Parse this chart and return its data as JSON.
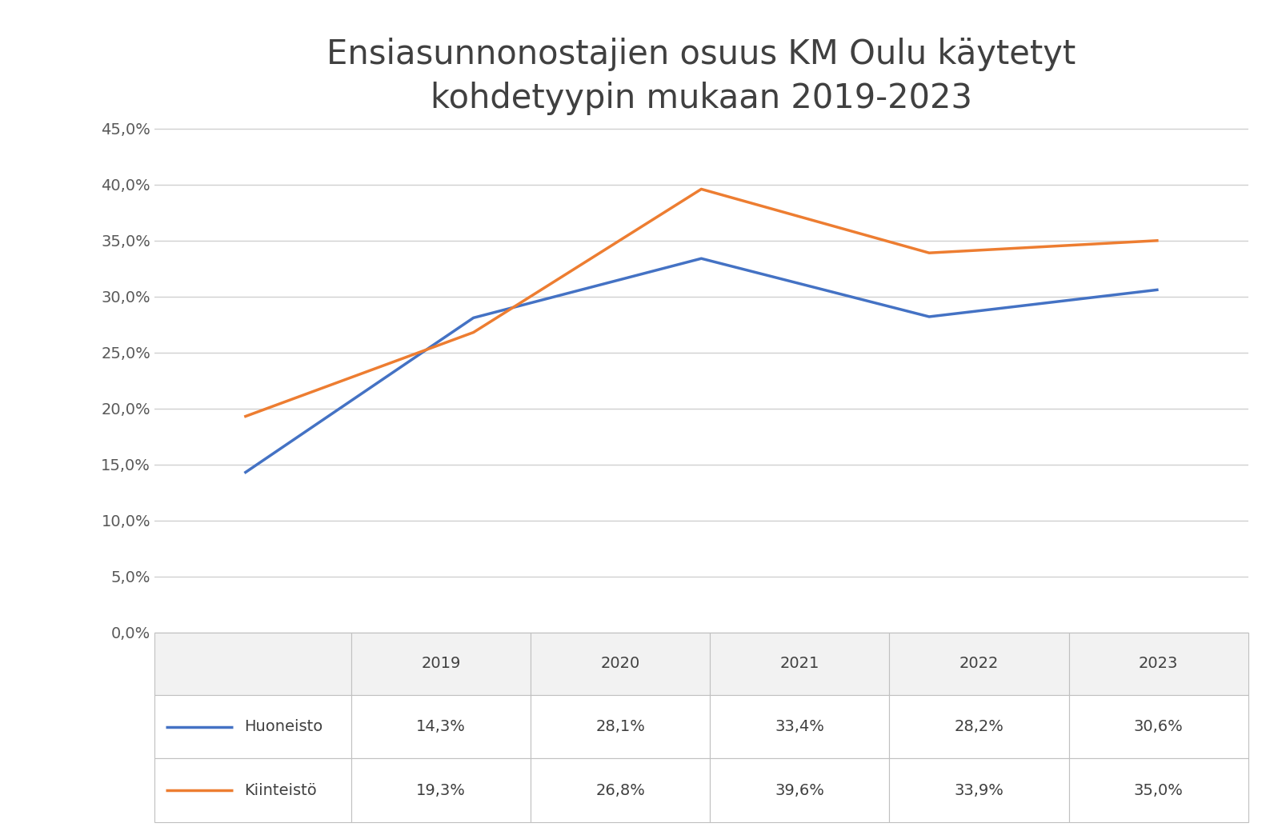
{
  "title": "Ensiasunnonostajien osuus KM Oulu käytetyt\nkohdetyypin mukaan 2019-2023",
  "years": [
    2019,
    2020,
    2021,
    2022,
    2023
  ],
  "huoneisto": [
    0.143,
    0.281,
    0.334,
    0.282,
    0.306
  ],
  "kiinteisto": [
    0.193,
    0.268,
    0.396,
    0.339,
    0.35
  ],
  "huoneisto_labels": [
    "14,3%",
    "28,1%",
    "33,4%",
    "28,2%",
    "30,6%"
  ],
  "kiinteisto_labels": [
    "19,3%",
    "26,8%",
    "39,6%",
    "33,9%",
    "35,0%"
  ],
  "color_huoneisto": "#4472C4",
  "color_kiinteisto": "#ED7D31",
  "ylim_min": 0.0,
  "ylim_max": 0.475,
  "yticks": [
    0.0,
    0.05,
    0.1,
    0.15,
    0.2,
    0.25,
    0.3,
    0.35,
    0.4,
    0.45
  ],
  "ytick_labels": [
    "0,0%",
    "5,0%",
    "10,0%",
    "15,0%",
    "20,0%",
    "25,0%",
    "30,0%",
    "35,0%",
    "40,0%",
    "45,0%"
  ],
  "chart_bg": "#ffffff",
  "fig_bg": "#ffffff",
  "grid_color": "#d0d0d0",
  "line_width": 2.5,
  "title_fontsize": 30,
  "tick_fontsize": 14,
  "table_fontsize": 14,
  "legend_label_huoneisto": "Huoneisto",
  "legend_label_kiinteisto": "Kiinteistö",
  "table_header_bg": "#f2f2f2",
  "table_row_bg": "#ffffff",
  "table_border_color": "#c0c0c0"
}
